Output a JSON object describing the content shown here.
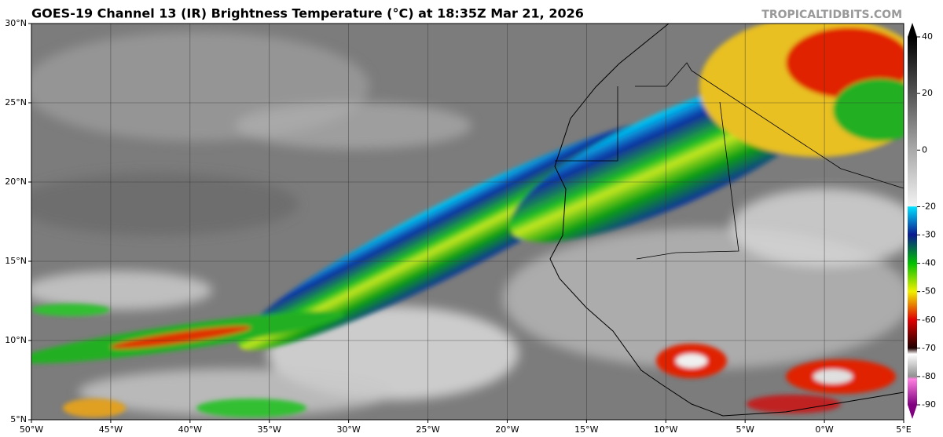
{
  "title": "GOES-19 Channel 13 (IR) Brightness Temperature (°C) at 18:35Z Mar 21, 2026",
  "credit": "TROPICALTIDBITS.COM",
  "map": {
    "xlim": [
      -50,
      5
    ],
    "ylim": [
      5,
      30
    ],
    "xticks": [
      {
        "value": -50,
        "label": "50°W"
      },
      {
        "value": -45,
        "label": "45°W"
      },
      {
        "value": -40,
        "label": "40°W"
      },
      {
        "value": -35,
        "label": "35°W"
      },
      {
        "value": -30,
        "label": "30°W"
      },
      {
        "value": -25,
        "label": "25°W"
      },
      {
        "value": -20,
        "label": "20°W"
      },
      {
        "value": -15,
        "label": "15°W"
      },
      {
        "value": -10,
        "label": "10°W"
      },
      {
        "value": -5,
        "label": "5°W"
      },
      {
        "value": 0,
        "label": "0°W"
      },
      {
        "value": 5,
        "label": "5°E"
      }
    ],
    "yticks": [
      {
        "value": 5,
        "label": "5°N"
      },
      {
        "value": 10,
        "label": "10°N"
      },
      {
        "value": 15,
        "label": "15°N"
      },
      {
        "value": 20,
        "label": "20°N"
      },
      {
        "value": 25,
        "label": "25°N"
      },
      {
        "value": 30,
        "label": "30°N"
      }
    ],
    "grid": true
  },
  "colorbar": {
    "lim": [
      -90,
      40
    ],
    "ticks": [
      40,
      20,
      0,
      -20,
      -30,
      -40,
      -50,
      -60,
      -70,
      -80,
      -90
    ]
  }
}
